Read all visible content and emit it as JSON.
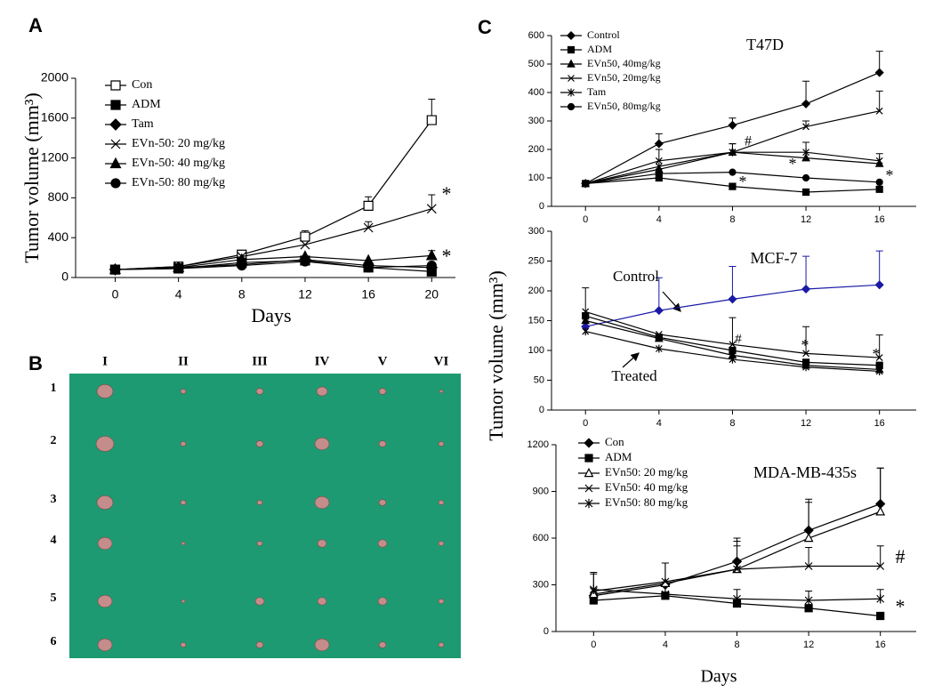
{
  "panel_labels": [
    "A",
    "B",
    "C"
  ],
  "photo": {
    "columns": [
      "I",
      "II",
      "III",
      "IV",
      "V",
      "VI"
    ],
    "rows": [
      "1",
      "2",
      "3",
      "4",
      "5",
      "6"
    ]
  },
  "shared_y_label": "Tumor volume (mm³)",
  "chart_data": [
    {
      "type": "line",
      "x_label": "Days",
      "y_label": "Tumor volume (mm³)",
      "x": [
        0,
        4,
        8,
        12,
        16,
        20
      ],
      "xlim": [
        -2.5,
        21.5
      ],
      "xticks": [
        0,
        4,
        8,
        12,
        16,
        20
      ],
      "ylim": [
        0,
        2000
      ],
      "yticks": [
        0,
        400,
        800,
        1200,
        1600,
        2000
      ],
      "series": [
        {
          "name": "Con",
          "color": "#000000",
          "marker": "square-open",
          "values": [
            80,
            110,
            230,
            410,
            720,
            1580
          ],
          "errors": [
            null,
            20,
            30,
            60,
            90,
            210
          ]
        },
        {
          "name": "ADM",
          "color": "#000000",
          "marker": "square",
          "values": [
            80,
            90,
            150,
            170,
            100,
            60
          ]
        },
        {
          "name": "Tam",
          "color": "#000000",
          "marker": "diamond",
          "values": [
            80,
            100,
            130,
            180,
            120,
            100
          ]
        },
        {
          "name": "EVn-50: 20 mg/kg",
          "color": "#000000",
          "marker": "x",
          "values": [
            80,
            110,
            210,
            330,
            500,
            690
          ],
          "errors": [
            null,
            null,
            null,
            null,
            60,
            140
          ]
        },
        {
          "name": "EVn-50: 40 mg/kg",
          "color": "#000000",
          "marker": "triangle",
          "values": [
            80,
            100,
            180,
            210,
            170,
            220
          ],
          "errors": [
            null,
            null,
            null,
            null,
            null,
            50
          ]
        },
        {
          "name": "EVn-50: 80 mg/kg",
          "color": "#000000",
          "marker": "circle",
          "values": [
            80,
            90,
            120,
            160,
            100,
            120
          ]
        }
      ],
      "annotations": [
        "*",
        "*"
      ]
    },
    {
      "type": "line",
      "title": "T47D",
      "x": [
        0,
        4,
        8,
        12,
        16
      ],
      "xlim": [
        -1.85,
        18
      ],
      "xticks": [
        0,
        4,
        8,
        12,
        16
      ],
      "ylim": [
        0,
        600
      ],
      "yticks": [
        0,
        100,
        200,
        300,
        400,
        500,
        600
      ],
      "series": [
        {
          "name": "Control",
          "color": "#000000",
          "marker": "diamond",
          "values": [
            80,
            220,
            285,
            360,
            470
          ],
          "errors": [
            null,
            35,
            25,
            80,
            75
          ]
        },
        {
          "name": "ADM",
          "color": "#000000",
          "marker": "square",
          "values": [
            80,
            100,
            70,
            50,
            60
          ]
        },
        {
          "name": "EVn50, 40mg/kg",
          "color": "#000000",
          "marker": "triangle",
          "values": [
            80,
            130,
            190,
            170,
            150
          ]
        },
        {
          "name": "EVn50, 20mg/kg",
          "color": "#000000",
          "marker": "x",
          "values": [
            80,
            160,
            190,
            280,
            335
          ],
          "errors": [
            null,
            40,
            30,
            20,
            70
          ]
        },
        {
          "name": "Tam",
          "color": "#000000",
          "marker": "asterisk",
          "values": [
            80,
            140,
            190,
            190,
            160
          ],
          "errors": [
            null,
            null,
            30,
            35,
            25
          ]
        },
        {
          "name": "EVn50, 80mg/kg",
          "color": "#000000",
          "marker": "circle",
          "values": [
            80,
            115,
            120,
            100,
            85
          ]
        }
      ],
      "annotations": [
        "*",
        "#",
        "*",
        "*"
      ]
    },
    {
      "type": "line",
      "title": "MCF-7",
      "x": [
        0,
        4,
        8,
        12,
        16
      ],
      "xlim": [
        -1.85,
        18
      ],
      "xticks": [
        0,
        4,
        8,
        12,
        16
      ],
      "ylim": [
        0,
        300
      ],
      "yticks": [
        0,
        50,
        100,
        150,
        200,
        250,
        300
      ],
      "series": [
        {
          "color": "#1a1aa6",
          "marker": "diamond",
          "values": [
            140,
            167,
            186,
            203,
            210
          ],
          "errors": [
            null,
            55,
            55,
            55,
            57
          ]
        },
        {
          "color": "#000000",
          "marker": "x",
          "values": [
            165,
            127,
            110,
            95,
            88
          ],
          "errors": [
            40,
            null,
            45,
            45,
            38
          ]
        },
        {
          "color": "#000000",
          "marker": "square",
          "values": [
            158,
            122,
            100,
            80,
            75
          ]
        },
        {
          "color": "#000000",
          "marker": "triangle",
          "values": [
            150,
            120,
            92,
            75,
            68
          ]
        },
        {
          "color": "#000000",
          "marker": "asterisk",
          "values": [
            132,
            103,
            85,
            72,
            65
          ]
        }
      ],
      "annotations": [
        "Control",
        "Treated",
        "#",
        "*",
        "*"
      ]
    },
    {
      "type": "line",
      "title": "MDA-MB-435s",
      "x_label": "Days",
      "x": [
        0,
        4,
        8,
        12,
        16
      ],
      "xlim": [
        -2.1,
        18
      ],
      "xticks": [
        0,
        4,
        8,
        12,
        16
      ],
      "ylim": [
        0,
        1200
      ],
      "yticks": [
        0,
        300,
        600,
        900,
        1200
      ],
      "series": [
        {
          "name": "Con",
          "color": "#000000",
          "marker": "diamond",
          "values": [
            230,
            300,
            450,
            650,
            820
          ],
          "errors": [
            null,
            null,
            150,
            200,
            230
          ]
        },
        {
          "name": "ADM",
          "color": "#000000",
          "marker": "square",
          "values": [
            200,
            230,
            180,
            150,
            100
          ]
        },
        {
          "name": "EVn50: 20 mg/kg",
          "color": "#000000",
          "marker": "triangle-open",
          "values": [
            240,
            310,
            400,
            600,
            770
          ],
          "errors": [
            null,
            130,
            180,
            230,
            280
          ]
        },
        {
          "name": "EVn50: 40 mg/kg",
          "color": "#000000",
          "marker": "x",
          "values": [
            260,
            320,
            400,
            420,
            420
          ],
          "errors": [
            120,
            120,
            150,
            120,
            130
          ]
        },
        {
          "name": "EVn50: 80 mg/kg",
          "color": "#000000",
          "marker": "asterisk",
          "values": [
            270,
            240,
            210,
            200,
            210
          ],
          "errors": [
            100,
            null,
            60,
            60,
            60
          ]
        }
      ],
      "annotations": [
        "#",
        "*"
      ]
    }
  ]
}
